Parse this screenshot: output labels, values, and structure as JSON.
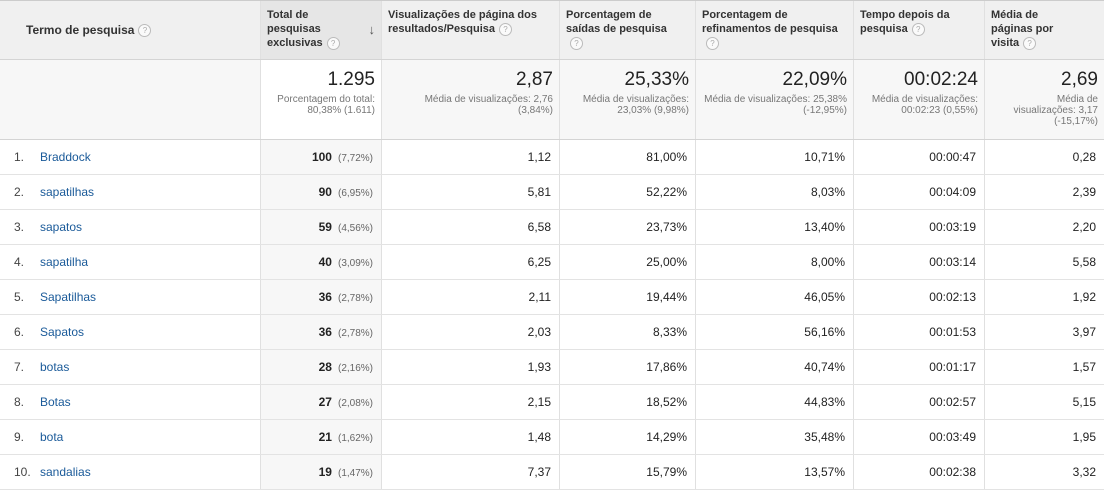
{
  "columns": [
    {
      "label": "Termo de pesquisa"
    },
    {
      "label": "Total de pesquisas exclusivas"
    },
    {
      "label": "Visualizações de página dos resultados/Pesquisa"
    },
    {
      "label": "Porcentagem de saídas de pesquisa"
    },
    {
      "label": "Porcentagem de refinamentos de pesquisa"
    },
    {
      "label": "Tempo depois da pesquisa"
    },
    {
      "label": "Média de páginas por visita"
    }
  ],
  "help_glyph": "?",
  "sort_glyph": "↓",
  "summary": [
    {
      "value": "1.295",
      "sub": "Porcentagem do total: 80,38% (1.611)"
    },
    {
      "value": "2,87",
      "sub": "Média de visualizações: 2,76 (3,84%)"
    },
    {
      "value": "25,33%",
      "sub": "Média de visualizações: 23,03% (9,98%)"
    },
    {
      "value": "22,09%",
      "sub": "Média de visualizações: 25,38% (-12,95%)"
    },
    {
      "value": "00:02:24",
      "sub": "Média de visualizações: 00:02:23 (0,55%)"
    },
    {
      "value": "2,69",
      "sub": "Média de visualizações: 3,17 (-15,17%)"
    }
  ],
  "rows": [
    {
      "index": "1.",
      "term": "Braddock",
      "searches": "100",
      "searches_pct": "(7,72%)",
      "views": "1,12",
      "exits": "81,00%",
      "refinements": "10,71%",
      "time": "00:00:47",
      "pages": "0,28"
    },
    {
      "index": "2.",
      "term": "sapatilhas",
      "searches": "90",
      "searches_pct": "(6,95%)",
      "views": "5,81",
      "exits": "52,22%",
      "refinements": "8,03%",
      "time": "00:04:09",
      "pages": "2,39"
    },
    {
      "index": "3.",
      "term": "sapatos",
      "searches": "59",
      "searches_pct": "(4,56%)",
      "views": "6,58",
      "exits": "23,73%",
      "refinements": "13,40%",
      "time": "00:03:19",
      "pages": "2,20"
    },
    {
      "index": "4.",
      "term": "sapatilha",
      "searches": "40",
      "searches_pct": "(3,09%)",
      "views": "6,25",
      "exits": "25,00%",
      "refinements": "8,00%",
      "time": "00:03:14",
      "pages": "5,58"
    },
    {
      "index": "5.",
      "term": "Sapatilhas",
      "searches": "36",
      "searches_pct": "(2,78%)",
      "views": "2,11",
      "exits": "19,44%",
      "refinements": "46,05%",
      "time": "00:02:13",
      "pages": "1,92"
    },
    {
      "index": "6.",
      "term": "Sapatos",
      "searches": "36",
      "searches_pct": "(2,78%)",
      "views": "2,03",
      "exits": "8,33%",
      "refinements": "56,16%",
      "time": "00:01:53",
      "pages": "3,97"
    },
    {
      "index": "7.",
      "term": "botas",
      "searches": "28",
      "searches_pct": "(2,16%)",
      "views": "1,93",
      "exits": "17,86%",
      "refinements": "40,74%",
      "time": "00:01:17",
      "pages": "1,57"
    },
    {
      "index": "8.",
      "term": "Botas",
      "searches": "27",
      "searches_pct": "(2,08%)",
      "views": "2,15",
      "exits": "18,52%",
      "refinements": "44,83%",
      "time": "00:02:57",
      "pages": "5,15"
    },
    {
      "index": "9.",
      "term": "bota",
      "searches": "21",
      "searches_pct": "(1,62%)",
      "views": "1,48",
      "exits": "14,29%",
      "refinements": "35,48%",
      "time": "00:03:49",
      "pages": "1,95"
    },
    {
      "index": "10.",
      "term": "sandalias",
      "searches": "19",
      "searches_pct": "(1,47%)",
      "views": "7,37",
      "exits": "15,79%",
      "refinements": "13,57%",
      "time": "00:02:38",
      "pages": "3,32"
    }
  ]
}
